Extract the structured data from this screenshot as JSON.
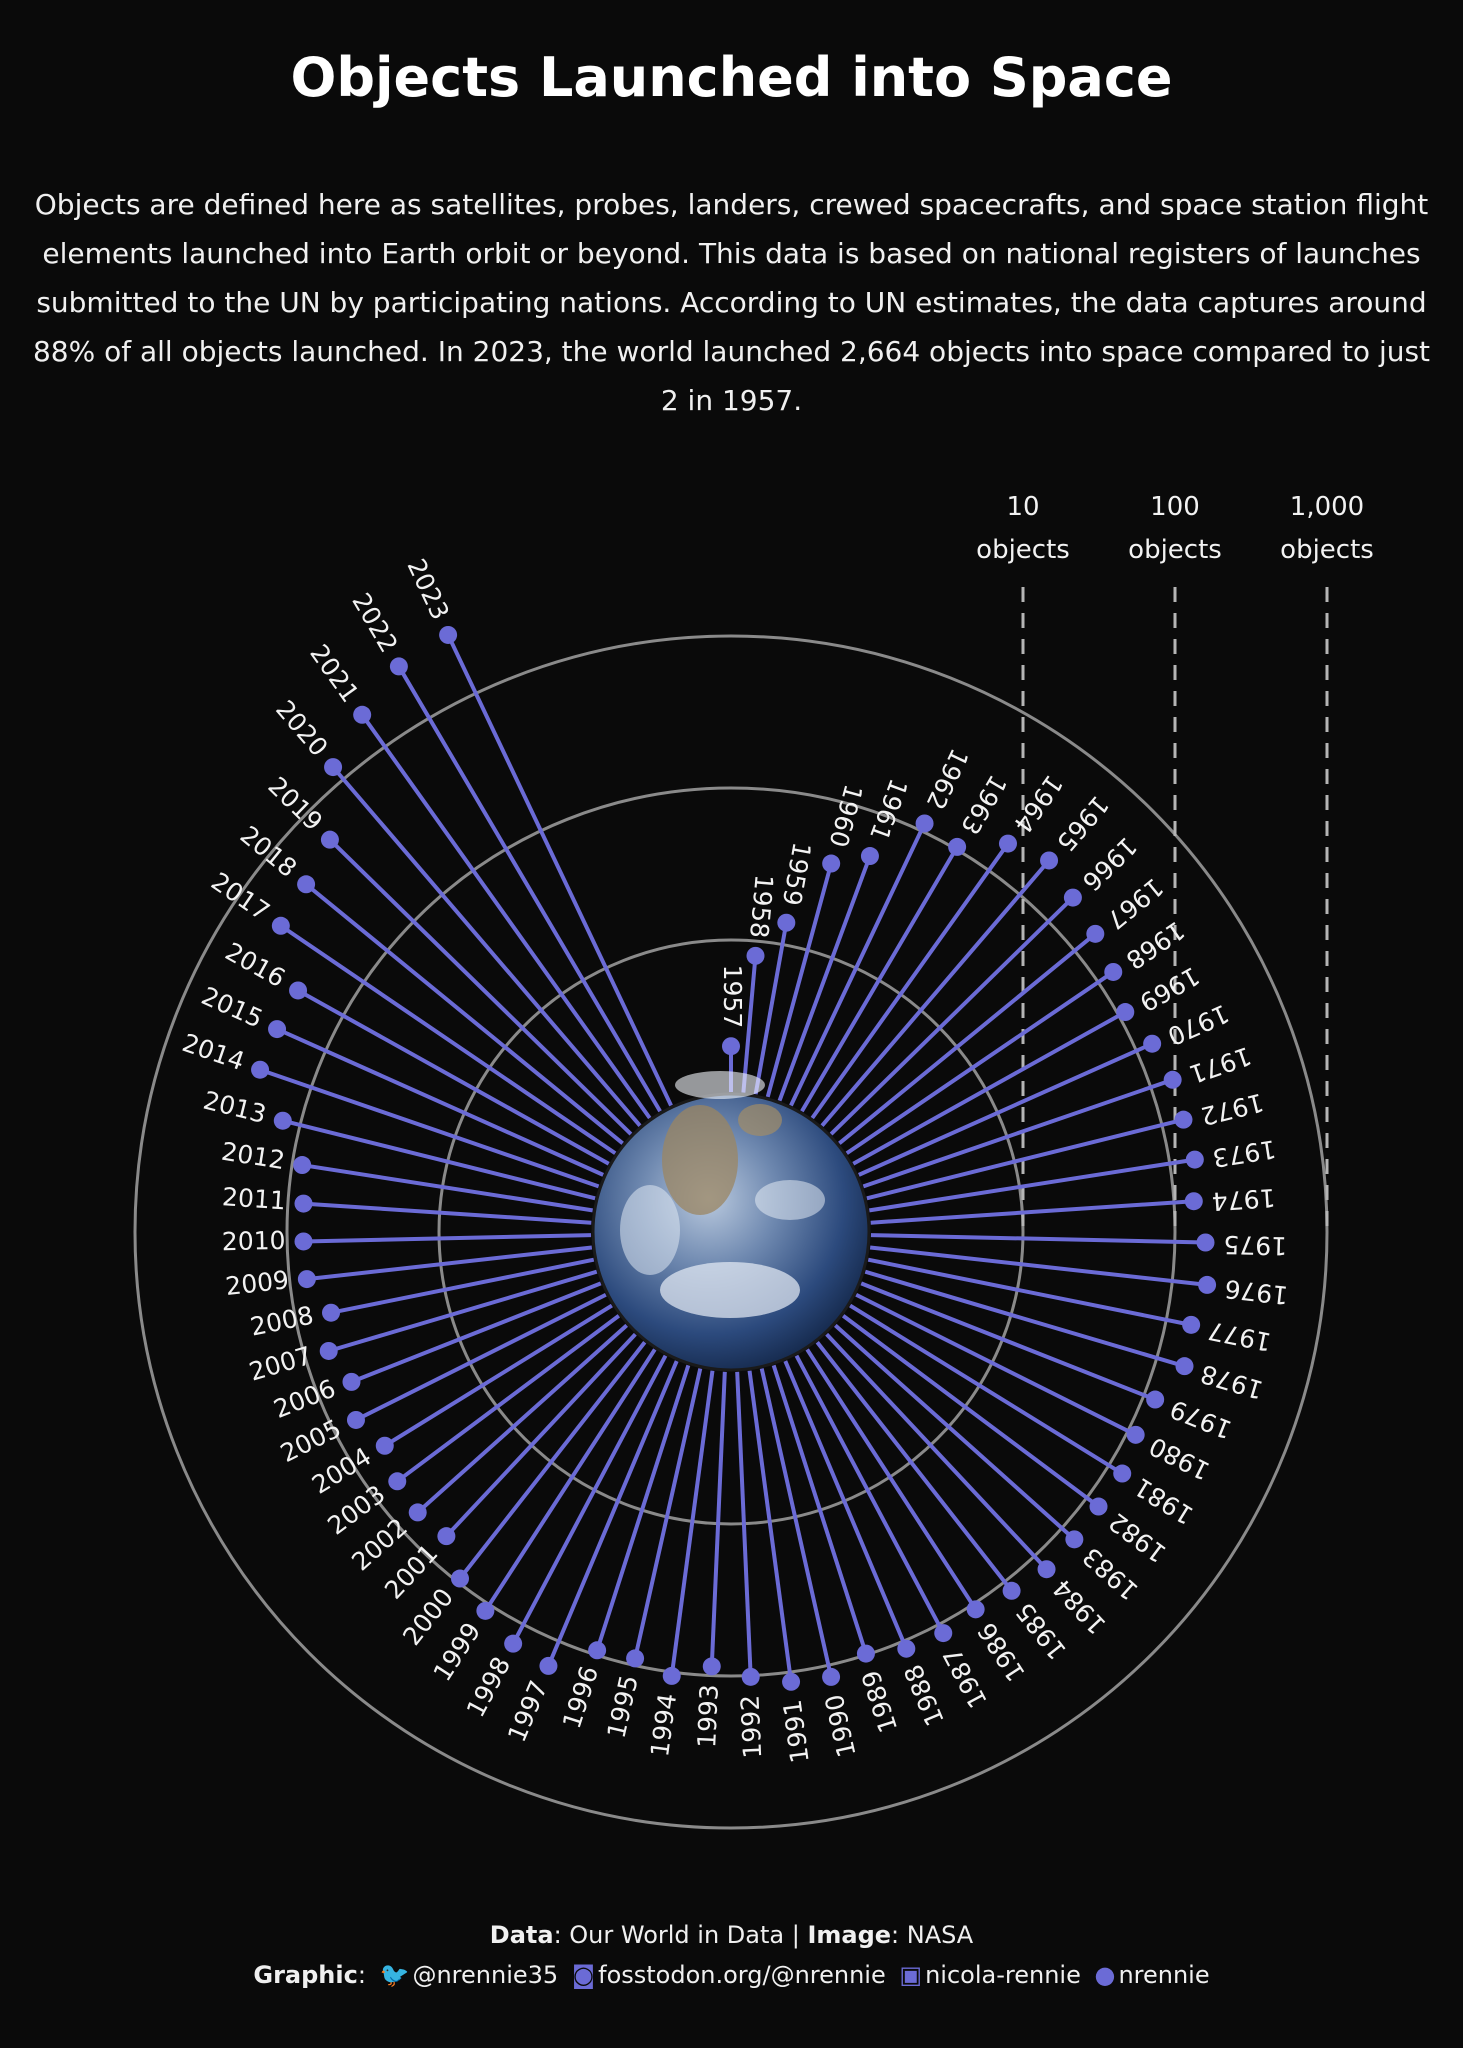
{
  "title": "Objects Launched into Space",
  "subtitle": "Objects are defined here as satellites, probes, landers, crewed spacecrafts, and space station flight elements launched into Earth orbit or beyond. This data is based on national registers of launches submitted to the UN by participating nations. According to UN estimates, the data captures around 88% of all objects launched. In 2023, the world launched 2,664 objects into space compared to just 2 in 1957.",
  "colors": {
    "background": "#0a0a0a",
    "accent": "#6b6bd6",
    "ring": "#8a8a8a",
    "text": "#f2f2f2"
  },
  "footer": {
    "data_label": "Data",
    "data_value": ": Our World in Data | ",
    "image_label": "Image",
    "image_value": ": NASA",
    "graphic_label": "Graphic",
    "links": [
      {
        "icon": "twitter-icon",
        "glyph": "🐦",
        "text": "@nrennie35"
      },
      {
        "icon": "mastodon-icon",
        "glyph": "◙",
        "text": "fosstodon.org/@nrennie"
      },
      {
        "icon": "linkedin-icon",
        "glyph": "▣",
        "text": "nicola-rennie"
      },
      {
        "icon": "github-icon",
        "glyph": "●",
        "text": "nrennie"
      }
    ]
  },
  "chart_data": {
    "type": "radial lollipop",
    "scale": "log10",
    "center_image": "earth-image",
    "legend": [
      {
        "line1": "10",
        "line2": "objects",
        "value": 10
      },
      {
        "line1": "100",
        "line2": "objects",
        "value": 100
      },
      {
        "line1": "1,000",
        "line2": "objects",
        "value": 1000
      }
    ],
    "years": [
      1957,
      1958,
      1959,
      1960,
      1961,
      1962,
      1963,
      1964,
      1965,
      1966,
      1967,
      1968,
      1969,
      1970,
      1971,
      1972,
      1973,
      1974,
      1975,
      1976,
      1977,
      1978,
      1979,
      1980,
      1981,
      1982,
      1983,
      1984,
      1985,
      1986,
      1987,
      1988,
      1989,
      1990,
      1991,
      1992,
      1993,
      1994,
      1995,
      1996,
      1997,
      1998,
      1999,
      2000,
      2001,
      2002,
      2003,
      2004,
      2005,
      2006,
      2007,
      2008,
      2009,
      2010,
      2011,
      2012,
      2013,
      2014,
      2015,
      2016,
      2017,
      2018,
      2019,
      2020,
      2021,
      2022,
      2023
    ],
    "values": [
      2,
      8,
      14,
      39,
      52,
      113,
      104,
      165,
      198,
      168,
      150,
      132,
      112,
      130,
      142,
      140,
      147,
      135,
      159,
      170,
      147,
      155,
      120,
      114,
      127,
      125,
      129,
      131,
      119,
      109,
      116,
      113,
      98,
      120,
      116,
      102,
      87,
      106,
      90,
      93,
      150,
      139,
      112,
      94,
      66,
      70,
      66,
      57,
      69,
      58,
      69,
      58,
      77,
      78,
      79,
      86,
      131,
      227,
      224,
      219,
      458,
      491,
      589,
      1273,
      1812,
      2477,
      2664
    ]
  }
}
